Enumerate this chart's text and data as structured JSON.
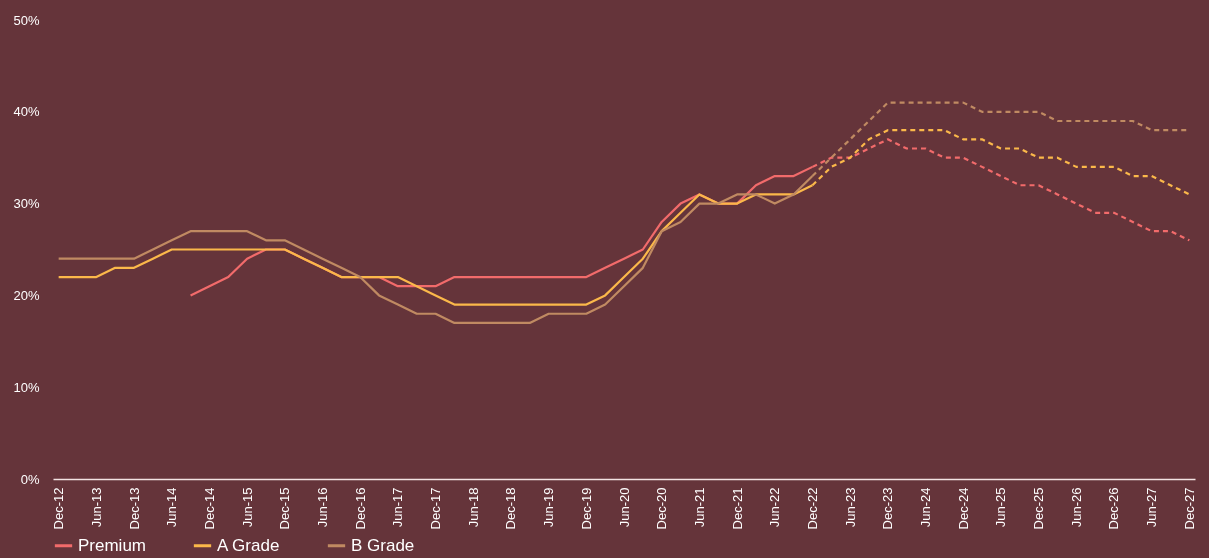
{
  "chart_data": {
    "type": "line",
    "categories": [
      "Dec-12",
      null,
      "Jun-13",
      null,
      "Dec-13",
      null,
      "Jun-14",
      null,
      "Dec-14",
      null,
      "Jun-15",
      null,
      "Dec-15",
      null,
      "Jun-16",
      null,
      "Dec-16",
      null,
      "Jun-17",
      null,
      "Dec-17",
      null,
      "Jun-18",
      null,
      "Dec-18",
      null,
      "Jun-19",
      null,
      "Dec-19",
      null,
      "Jun-20",
      null,
      "Dec-20",
      null,
      "Jun-21",
      null,
      "Dec-21",
      null,
      "Jun-22",
      null,
      "Dec-22",
      null,
      "Jun-23",
      null,
      "Dec-23",
      null,
      "Jun-24",
      null,
      "Dec-24",
      null,
      "Jun-25",
      null,
      "Dec-25",
      null,
      "Jun-26",
      null,
      "Dec-26",
      null,
      "Jun-27",
      null,
      "Dec-27"
    ],
    "series": [
      {
        "name": "Premium",
        "color": "#f26b6b",
        "line_style": "solid",
        "values": [
          null,
          null,
          null,
          null,
          null,
          null,
          null,
          20,
          21,
          22,
          24,
          25,
          25,
          24,
          23,
          22,
          22,
          22,
          21,
          21,
          21,
          22,
          22,
          22,
          22,
          22,
          22,
          22,
          22,
          23,
          24,
          25,
          28,
          30,
          31,
          30,
          30,
          32,
          33,
          33,
          34,
          null,
          null,
          null,
          null,
          null,
          null,
          null,
          null,
          null,
          null,
          null,
          null,
          null,
          null,
          null,
          null,
          null,
          null,
          null,
          null
        ]
      },
      {
        "name": "A Grade",
        "color": "#fbb84a",
        "line_style": "solid",
        "values": [
          22,
          22,
          22,
          23,
          23,
          24,
          25,
          25,
          25,
          25,
          25,
          25,
          25,
          24,
          23,
          22,
          22,
          22,
          22,
          21,
          20,
          19,
          19,
          19,
          19,
          19,
          19,
          19,
          19,
          20,
          22,
          24,
          27,
          29,
          31,
          30,
          30,
          31,
          31,
          31,
          32,
          null,
          null,
          null,
          null,
          null,
          null,
          null,
          null,
          null,
          null,
          null,
          null,
          null,
          null,
          null,
          null,
          null,
          null,
          null,
          null
        ]
      },
      {
        "name": "B Grade",
        "color": "#c08a62",
        "line_style": "solid",
        "values": [
          24,
          24,
          24,
          24,
          24,
          25,
          26,
          27,
          27,
          27,
          27,
          26,
          26,
          25,
          24,
          23,
          22,
          20,
          19,
          18,
          18,
          17,
          17,
          17,
          17,
          17,
          18,
          18,
          18,
          19,
          21,
          23,
          27,
          28,
          30,
          30,
          31,
          31,
          30,
          31,
          33,
          null,
          null,
          null,
          null,
          null,
          null,
          null,
          null,
          null,
          null,
          null,
          null,
          null,
          null,
          null,
          null,
          null,
          null,
          null,
          null
        ]
      },
      {
        "color": "#f26b6b",
        "line_style": "dashed",
        "values": [
          null,
          null,
          null,
          null,
          null,
          null,
          null,
          null,
          null,
          null,
          null,
          null,
          null,
          null,
          null,
          null,
          null,
          null,
          null,
          null,
          null,
          null,
          null,
          null,
          null,
          null,
          null,
          null,
          null,
          null,
          null,
          null,
          null,
          null,
          null,
          null,
          null,
          null,
          null,
          null,
          34,
          35,
          35,
          36,
          37,
          36,
          36,
          35,
          35,
          34,
          33,
          32,
          32,
          31,
          30,
          29,
          29,
          28,
          27,
          27,
          26
        ]
      },
      {
        "color": "#fbb84a",
        "line_style": "dashed",
        "values": [
          null,
          null,
          null,
          null,
          null,
          null,
          null,
          null,
          null,
          null,
          null,
          null,
          null,
          null,
          null,
          null,
          null,
          null,
          null,
          null,
          null,
          null,
          null,
          null,
          null,
          null,
          null,
          null,
          null,
          null,
          null,
          null,
          null,
          null,
          null,
          null,
          null,
          null,
          null,
          null,
          32,
          34,
          35,
          37,
          38,
          38,
          38,
          38,
          37,
          37,
          36,
          36,
          35,
          35,
          34,
          34,
          34,
          33,
          33,
          32,
          31
        ]
      },
      {
        "color": "#c08a62",
        "line_style": "dashed",
        "values": [
          null,
          null,
          null,
          null,
          null,
          null,
          null,
          null,
          null,
          null,
          null,
          null,
          null,
          null,
          null,
          null,
          null,
          null,
          null,
          null,
          null,
          null,
          null,
          null,
          null,
          null,
          null,
          null,
          null,
          null,
          null,
          null,
          null,
          null,
          null,
          null,
          null,
          null,
          null,
          null,
          33,
          35,
          37,
          39,
          41,
          41,
          41,
          41,
          41,
          40,
          40,
          40,
          40,
          39,
          39,
          39,
          39,
          39,
          38,
          38,
          38
        ]
      }
    ],
    "ylim": [
      0,
      50
    ],
    "yticks": [
      {
        "value": 0,
        "label": "0%"
      },
      {
        "value": 10,
        "label": "10%"
      },
      {
        "value": 20,
        "label": "20%"
      },
      {
        "value": 30,
        "label": "30%"
      },
      {
        "value": 40,
        "label": "40%"
      },
      {
        "value": 50,
        "label": "50%"
      }
    ],
    "grid": false,
    "legend": "bottom left"
  }
}
